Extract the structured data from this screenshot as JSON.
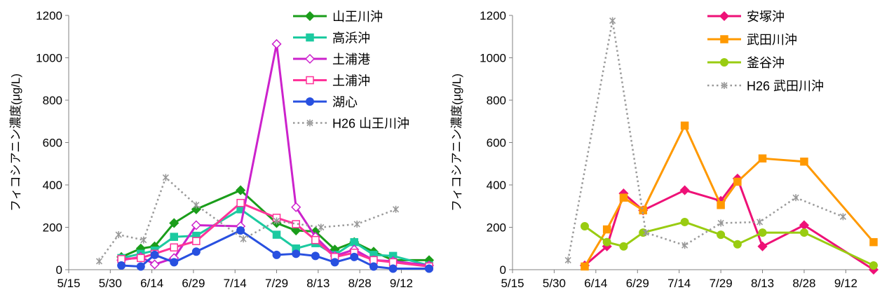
{
  "chart_data": [
    {
      "type": "line",
      "title": "",
      "xlabel": "",
      "ylabel": "フィコシアニン濃度(μg/L)",
      "ylim": [
        0,
        1200
      ],
      "yticks": [
        0,
        200,
        400,
        600,
        800,
        1000,
        1200
      ],
      "xlim": [
        "2015-05-15",
        "2015-09-22"
      ],
      "xticks": [
        "5/15",
        "5/30",
        "6/14",
        "6/29",
        "7/14",
        "7/29",
        "8/13",
        "8/28",
        "9/12"
      ],
      "legend_position": "top-right",
      "series": [
        {
          "name": "山王川沖",
          "color": "#1a9d1a",
          "marker": "diamond",
          "style": "solid",
          "x": [
            "2015-06-03",
            "2015-06-10",
            "2015-06-15",
            "2015-06-22",
            "2015-06-30",
            "2015-07-16",
            "2015-07-29",
            "2015-08-05",
            "2015-08-12",
            "2015-08-19",
            "2015-08-26",
            "2015-09-02",
            "2015-09-09",
            "2015-09-22"
          ],
          "values": [
            60,
            100,
            110,
            220,
            285,
            375,
            220,
            185,
            180,
            95,
            130,
            85,
            45,
            45
          ]
        },
        {
          "name": "高浜沖",
          "color": "#1ccaa0",
          "marker": "square",
          "style": "solid",
          "x": [
            "2015-06-03",
            "2015-06-10",
            "2015-06-15",
            "2015-06-22",
            "2015-06-30",
            "2015-07-16",
            "2015-07-29",
            "2015-08-05",
            "2015-08-12",
            "2015-08-19",
            "2015-08-26",
            "2015-09-02",
            "2015-09-09",
            "2015-09-22"
          ],
          "values": [
            55,
            75,
            90,
            155,
            160,
            285,
            165,
            100,
            125,
            70,
            130,
            70,
            65,
            20
          ]
        },
        {
          "name": "土浦港",
          "color": "#cc22cc",
          "marker": "diamond-open",
          "style": "solid",
          "x": [
            "2015-06-03",
            "2015-06-10",
            "2015-06-15",
            "2015-06-22",
            "2015-06-30",
            "2015-07-16",
            "2015-07-29",
            "2015-08-05",
            "2015-08-12",
            "2015-08-19",
            "2015-08-26",
            "2015-09-02",
            "2015-09-09",
            "2015-09-22"
          ],
          "values": [
            45,
            60,
            25,
            55,
            210,
            205,
            1065,
            295,
            155,
            65,
            95,
            45,
            40,
            20
          ]
        },
        {
          "name": "土浦沖",
          "color": "#ff3399",
          "marker": "square-open",
          "style": "solid",
          "x": [
            "2015-06-03",
            "2015-06-10",
            "2015-06-15",
            "2015-06-22",
            "2015-06-30",
            "2015-07-16",
            "2015-07-29",
            "2015-08-05",
            "2015-08-12",
            "2015-08-19",
            "2015-08-26",
            "2015-09-02",
            "2015-09-09",
            "2015-09-22"
          ],
          "values": [
            50,
            55,
            75,
            105,
            135,
            315,
            245,
            215,
            140,
            60,
            80,
            45,
            35,
            15
          ]
        },
        {
          "name": "湖心",
          "color": "#2850e0",
          "marker": "circle",
          "style": "solid",
          "x": [
            "2015-06-03",
            "2015-06-10",
            "2015-06-15",
            "2015-06-22",
            "2015-06-30",
            "2015-07-16",
            "2015-07-29",
            "2015-08-05",
            "2015-08-12",
            "2015-08-19",
            "2015-08-26",
            "2015-09-02",
            "2015-09-09",
            "2015-09-22"
          ],
          "values": [
            20,
            15,
            70,
            35,
            85,
            185,
            70,
            75,
            65,
            35,
            60,
            15,
            5,
            5
          ]
        },
        {
          "name": "H26 山王川沖",
          "color": "#999999",
          "marker": "star",
          "style": "dotted",
          "x": [
            "2015-05-26",
            "2015-06-02",
            "2015-06-11",
            "2015-06-19",
            "2015-06-30",
            "2015-07-17",
            "2015-07-29",
            "2015-08-14",
            "2015-08-27",
            "2015-09-10"
          ],
          "values": [
            40,
            165,
            140,
            435,
            305,
            145,
            230,
            200,
            215,
            285
          ]
        }
      ]
    },
    {
      "type": "line",
      "title": "",
      "xlabel": "",
      "ylabel": "フィコシアニン濃度(μg/L)",
      "ylim": [
        0,
        1200
      ],
      "yticks": [
        0,
        200,
        400,
        600,
        800,
        1000,
        1200
      ],
      "xlim": [
        "2015-05-15",
        "2015-09-22"
      ],
      "xticks": [
        "5/15",
        "5/30",
        "6/14",
        "6/29",
        "7/14",
        "7/29",
        "8/13",
        "8/28",
        "9/12"
      ],
      "legend_position": "top-right",
      "series": [
        {
          "name": "安塚沖",
          "color": "#ee1177",
          "marker": "diamond",
          "style": "solid",
          "x": [
            "2015-06-10",
            "2015-06-18",
            "2015-06-24",
            "2015-07-01",
            "2015-07-16",
            "2015-07-29",
            "2015-08-04",
            "2015-08-13",
            "2015-08-28",
            "2015-09-22"
          ],
          "values": [
            20,
            110,
            360,
            280,
            375,
            325,
            430,
            110,
            210,
            0
          ]
        },
        {
          "name": "武田川沖",
          "color": "#ff9900",
          "marker": "square",
          "style": "solid",
          "x": [
            "2015-06-10",
            "2015-06-18",
            "2015-06-24",
            "2015-07-01",
            "2015-07-16",
            "2015-07-29",
            "2015-08-04",
            "2015-08-13",
            "2015-08-28",
            "2015-09-22"
          ],
          "values": [
            15,
            190,
            340,
            280,
            680,
            305,
            415,
            525,
            510,
            130
          ]
        },
        {
          "name": "釜谷沖",
          "color": "#99cc11",
          "marker": "circle",
          "style": "solid",
          "x": [
            "2015-06-10",
            "2015-06-18",
            "2015-06-24",
            "2015-07-01",
            "2015-07-16",
            "2015-07-29",
            "2015-08-04",
            "2015-08-13",
            "2015-08-28",
            "2015-09-22"
          ],
          "values": [
            205,
            130,
            110,
            175,
            225,
            165,
            120,
            175,
            175,
            20
          ]
        },
        {
          "name": "H26 武田川沖",
          "color": "#999999",
          "marker": "star",
          "style": "dotted",
          "x": [
            "2015-06-04",
            "2015-06-20",
            "2015-07-02",
            "2015-07-16",
            "2015-07-29",
            "2015-08-12",
            "2015-08-25",
            "2015-09-11"
          ],
          "values": [
            45,
            1175,
            175,
            115,
            220,
            225,
            340,
            250
          ]
        }
      ]
    }
  ]
}
